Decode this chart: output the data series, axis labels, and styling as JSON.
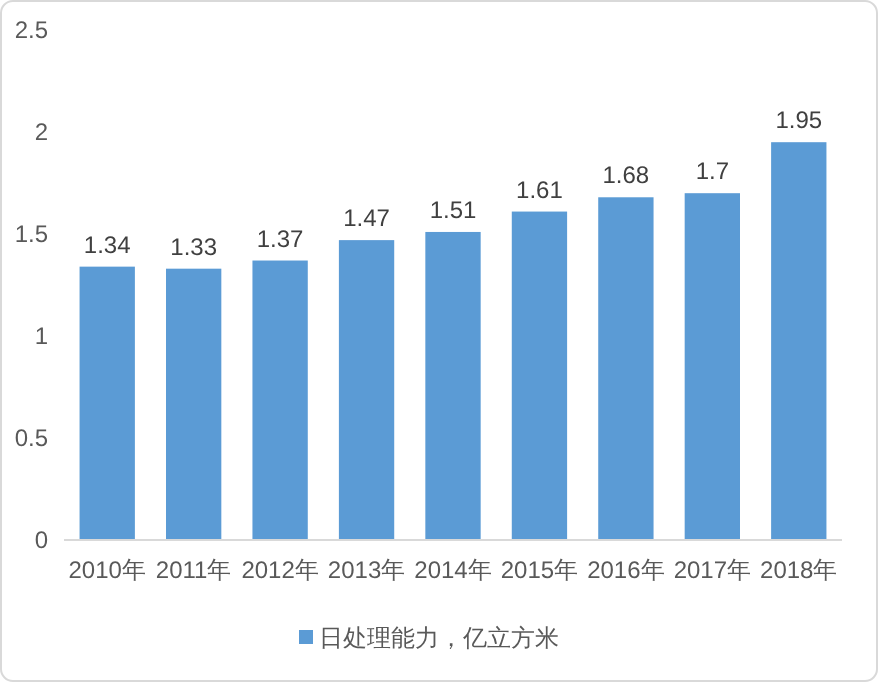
{
  "chart_data": {
    "type": "bar",
    "categories": [
      "2010年",
      "2011年",
      "2012年",
      "2013年",
      "2014年",
      "2015年",
      "2016年",
      "2017年",
      "2018年"
    ],
    "series": [
      {
        "name": "日处理能力，亿立方米",
        "color": "#5b9bd5",
        "values": [
          1.34,
          1.33,
          1.37,
          1.47,
          1.51,
          1.61,
          1.68,
          1.7,
          1.95
        ]
      }
    ],
    "ylim": [
      0,
      2.5
    ],
    "yticks": [
      0,
      0.5,
      1,
      1.5,
      2,
      2.5
    ],
    "data_labels": true,
    "legend": "bottom",
    "grid": false
  }
}
